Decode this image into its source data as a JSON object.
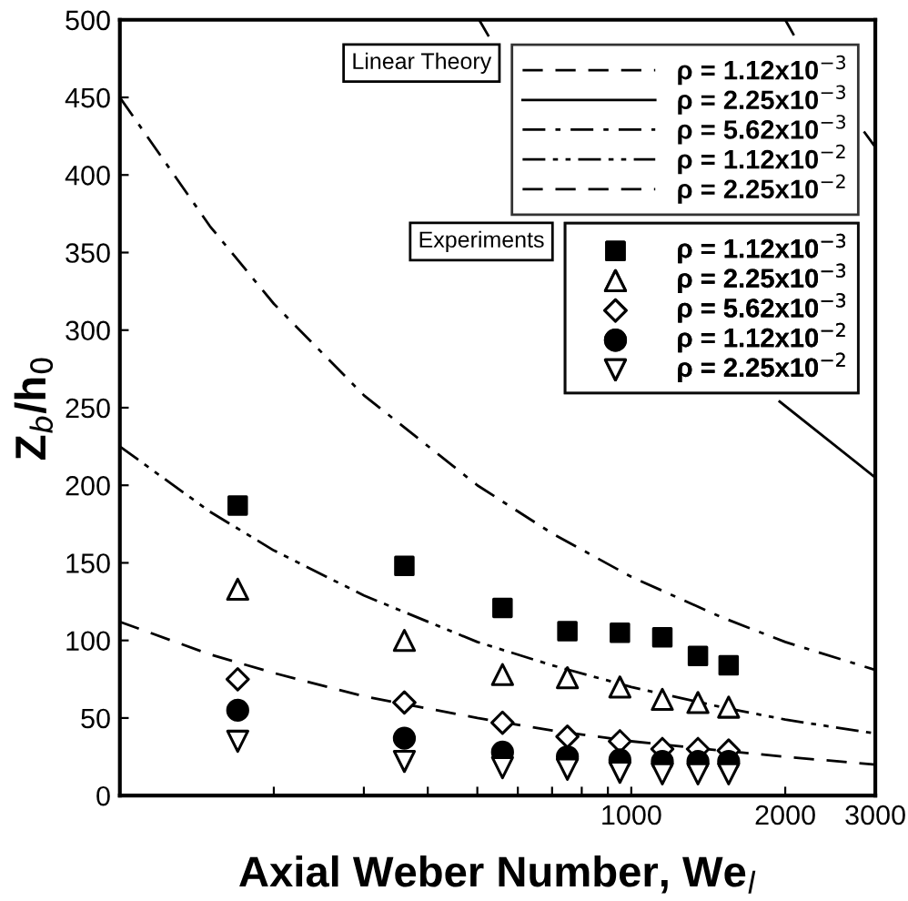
{
  "chart_data": {
    "type": "scatter",
    "xlabel": "Axial Weber Number, We$_{l}$",
    "ylabel": "Z$_{b}$/h$_{0}$",
    "log": "x",
    "xlim": [
      100,
      3000
    ],
    "xticks": [
      {
        "value": 200,
        "label": null
      },
      {
        "value": 300,
        "label": null
      },
      {
        "value": 400,
        "label": null
      },
      {
        "value": 500,
        "label": null
      },
      {
        "value": 600,
        "label": null
      },
      {
        "value": 700,
        "label": null
      },
      {
        "value": 800,
        "label": null
      },
      {
        "value": 900,
        "label": null
      },
      1000,
      2000,
      3000
    ],
    "ylim": [
      0,
      500
    ],
    "yticks": [
      0,
      50,
      100,
      150,
      200,
      250,
      300,
      350,
      400,
      450,
      500
    ],
    "grid": false,
    "legend": "top right",
    "annotations": [
      "Linear Theory",
      "Experiments"
    ],
    "series": [
      {
        "type": "line",
        "name": "ρ = 1.12x10$^{−3}$",
        "color": "#000000",
        "line_style": "dashed",
        "x": [
          2000,
          2080,
          2500,
          2850,
          3000
        ],
        "values": [
          500,
          490,
          null,
          428,
          418
        ]
      },
      {
        "type": "line",
        "name": "ρ = 2.25x10$^{−3}$",
        "color": "#000000",
        "line_style": "solid",
        "x": [
          504,
          525,
          1000,
          1950,
          3000
        ],
        "values": [
          500,
          490,
          null,
          254,
          205
        ]
      },
      {
        "type": "line",
        "name": "ρ = 5.62x10$^{−3}$",
        "color": "#000000",
        "line_style": "dashdot",
        "x": [
          100,
          150,
          200,
          300,
          500,
          700,
          1000,
          1500,
          2000,
          3000
        ],
        "values": [
          450,
          367,
          317,
          258,
          200,
          169,
          141,
          115,
          99,
          81
        ]
      },
      {
        "type": "line",
        "name": "ρ = 1.12x10$^{−2}$",
        "color": "#000000",
        "line_style": "dashdotdot",
        "x": [
          100,
          150,
          200,
          300,
          500,
          700,
          1000,
          1500,
          2000,
          3000
        ],
        "values": [
          225,
          183,
          158,
          129,
          99,
          84,
          70,
          57,
          49,
          40
        ]
      },
      {
        "type": "line",
        "name": "ρ = 2.25x10$^{−2}$",
        "color": "#000000",
        "line_style": "dashed",
        "x": [
          100,
          150,
          200,
          300,
          500,
          700,
          1000,
          1500,
          2000,
          3000
        ],
        "values": [
          112,
          91,
          79,
          64,
          50,
          42,
          35,
          29,
          25,
          20
        ]
      },
      {
        "name": "ρ = 1.12x10$^{−3}$",
        "color": "#000000",
        "marker": "square",
        "x": [
          170,
          360,
          560,
          750,
          950,
          1150,
          1350,
          1550
        ],
        "values": [
          187,
          148,
          121,
          106,
          105,
          102,
          90,
          84
        ]
      },
      {
        "name": "ρ = 2.25x10$^{−3}$",
        "color": "#000000",
        "marker": "triangle",
        "x": [
          170,
          360,
          560,
          750,
          950,
          1150,
          1350,
          1550
        ],
        "values": [
          133,
          100,
          78,
          76,
          70,
          62,
          60,
          57
        ]
      },
      {
        "name": "ρ = 5.62x10$^{−3}$",
        "color": "#000000",
        "marker": "diamond",
        "x": [
          170,
          360,
          560,
          750,
          950,
          1150,
          1350,
          1550
        ],
        "values": [
          75,
          60,
          47,
          38,
          35,
          30,
          30,
          29
        ]
      },
      {
        "name": "ρ = 1.12x10$^{−2}$",
        "color": "#000000",
        "marker": "circle",
        "x": [
          170,
          360,
          560,
          750,
          950,
          1150,
          1350,
          1550
        ],
        "values": [
          55,
          37,
          28,
          25,
          23,
          22,
          22,
          22
        ]
      },
      {
        "name": "ρ = 2.25x10$^{−2}$",
        "color": "#000000",
        "marker": "triangle_down",
        "x": [
          170,
          360,
          560,
          750,
          950,
          1150,
          1350,
          1550
        ],
        "values": [
          35,
          22,
          18,
          17,
          15,
          14,
          14,
          14
        ]
      }
    ]
  }
}
